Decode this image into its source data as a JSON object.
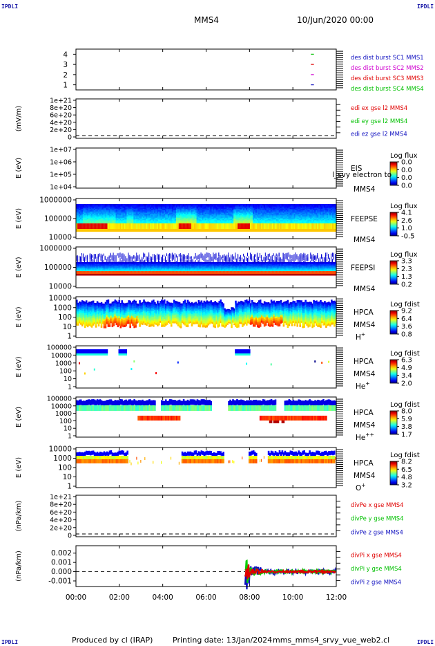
{
  "header": {
    "corner_mark": "IPDLI",
    "spacecraft": "MMS4",
    "datetime": "10/Jun/2020 00:00"
  },
  "footer": {
    "produced_by": "Produced by cl (IRAP)",
    "printing_date": "Printing date: 13/Jan/2024",
    "filename": "mms_mms4_srvy_vue_web2.cl"
  },
  "colors": {
    "mms1": "#1010c0",
    "mms2": "#d000d0",
    "mms3": "#e00000",
    "mms4": "#00c000",
    "x_comp": "#e00000",
    "y_comp": "#00d000",
    "z_comp": "#0000d0"
  },
  "chart_data": [
    {
      "type": "line",
      "panel": "dist-burst",
      "y_ticks": [
        "4",
        "3",
        "2",
        "1"
      ],
      "ylim": [
        0.5,
        4.5
      ],
      "series": [
        {
          "name": "des dist burst SC1 MMS1",
          "color": "#1010c0",
          "y": 1,
          "segments": [
            [
              10.83,
              10.97
            ]
          ]
        },
        {
          "name": "des dist burst SC2 MMS2",
          "color": "#d000d0",
          "y": 2,
          "segments": [
            [
              10.83,
              10.97
            ]
          ]
        },
        {
          "name": "des dist burst SC3 MMS3",
          "color": "#e00000",
          "y": 3,
          "segments": [
            [
              10.83,
              10.97
            ]
          ]
        },
        {
          "name": "des dist burst SC4 MMS4",
          "color": "#00c000",
          "y": 4,
          "segments": [
            [
              10.83,
              10.97
            ]
          ]
        }
      ]
    },
    {
      "type": "line",
      "panel": "edi-efield",
      "ylabel": "(mV/m)",
      "y_ticks": [
        "1e+21",
        "8e+20",
        "6e+20",
        "4e+20",
        "2e+20",
        "0"
      ],
      "legend": [
        {
          "name": "edi ex gse l2 MMS4",
          "color": "#e00000"
        },
        {
          "name": "edi ey gse l2 MMS4",
          "color": "#00c000"
        },
        {
          "name": "edi ez gse l2 MMS4",
          "color": "#1010c0"
        }
      ]
    },
    {
      "type": "heatmap",
      "panel": "eis",
      "ylabel": "E (eV)",
      "y_ticks": [
        "1e+07",
        "1e+06",
        "1e+05",
        "1e+04"
      ],
      "label_lines": [
        "EIS",
        "MMS4"
      ],
      "overlay_text": "l_svy electron to",
      "colorbar": {
        "title": "Log flux",
        "ticks": [
          "0.0",
          "0.0",
          "0.0",
          "0.0"
        ]
      }
    },
    {
      "type": "heatmap",
      "panel": "feeps-e",
      "ylabel": "E (eV)",
      "y_ticks": [
        "1000000",
        "100000",
        "10000"
      ],
      "label_lines": [
        "FEEPSE",
        "MMS4"
      ],
      "colorbar": {
        "title": "Log flux",
        "ticks": [
          "4.1",
          "2.6",
          "1.0",
          "-0.5"
        ]
      }
    },
    {
      "type": "heatmap",
      "panel": "feeps-i",
      "ylabel": "E (eV)",
      "y_ticks": [
        "1000000",
        "100000",
        "10000"
      ],
      "label_lines": [
        "FEEPSI",
        "MMS4"
      ],
      "colorbar": {
        "title": "Log flux",
        "ticks": [
          "3.3",
          "2.3",
          "1.3",
          "0.2"
        ]
      }
    },
    {
      "type": "heatmap",
      "panel": "hpca-h",
      "ylabel": "E (eV)",
      "y_ticks": [
        "10000",
        "1000",
        "100",
        "10",
        "1"
      ],
      "label_lines": [
        "HPCA",
        "MMS4"
      ],
      "species": "H",
      "species_sup": "+",
      "colorbar": {
        "title": "Log fdist",
        "ticks": [
          "9.2",
          "6.4",
          "3.6",
          "0.8"
        ]
      }
    },
    {
      "type": "heatmap",
      "panel": "hpca-he",
      "ylabel": "E (eV)",
      "y_ticks": [
        "100000",
        "10000",
        "1000",
        "100",
        "10",
        "1"
      ],
      "label_lines": [
        "HPCA",
        "MMS4"
      ],
      "species": "He",
      "species_sup": "+",
      "colorbar": {
        "title": "Log fdist",
        "ticks": [
          "6.3",
          "4.9",
          "3.4",
          "2.0"
        ]
      }
    },
    {
      "type": "heatmap",
      "panel": "hpca-he2",
      "ylabel": "E (eV)",
      "y_ticks": [
        "100000",
        "10000",
        "1000",
        "100",
        "10",
        "1"
      ],
      "label_lines": [
        "HPCA",
        "MMS4"
      ],
      "species": "He",
      "species_sup": "++",
      "colorbar": {
        "title": "Log fdist",
        "ticks": [
          "8.0",
          "5.9",
          "3.8",
          "1.7"
        ]
      }
    },
    {
      "type": "heatmap",
      "panel": "hpca-o",
      "ylabel": "E (eV)",
      "y_ticks": [
        "10000",
        "1000",
        "100",
        "10",
        "1"
      ],
      "label_lines": [
        "HPCA",
        "MMS4"
      ],
      "species": "O",
      "species_sup": "+",
      "colorbar": {
        "title": "Log fdist",
        "ticks": [
          "8.2",
          "6.5",
          "4.8",
          "3.2"
        ]
      }
    },
    {
      "type": "line",
      "panel": "divpe",
      "ylabel": "(nPa/km)",
      "y_ticks": [
        "1e+21",
        "8e+20",
        "6e+20",
        "4e+20",
        "2e+20",
        "0"
      ],
      "legend": [
        {
          "name": "divPe x gse MMS4",
          "color": "#e00000"
        },
        {
          "name": "divPe y gse MMS4",
          "color": "#00c000"
        },
        {
          "name": "divPe z gse MMS4",
          "color": "#1010c0"
        }
      ]
    },
    {
      "type": "line",
      "panel": "divpi",
      "ylabel": "(nPa/km)",
      "y_ticks": [
        "0.002",
        "0.001",
        "0.000",
        "-0.001"
      ],
      "ylim": [
        -0.0016,
        0.0028
      ],
      "legend": [
        {
          "name": "divPi x gse MMS4",
          "color": "#e00000"
        },
        {
          "name": "divPi y gse MMS4",
          "color": "#00c000"
        },
        {
          "name": "divPi z gse MMS4",
          "color": "#1010c0"
        }
      ],
      "data_start_hour": 7.8
    }
  ],
  "x_axis": {
    "ticks": [
      "00:00",
      "02:00",
      "04:00",
      "06:00",
      "08:00",
      "10:00",
      "12:00"
    ],
    "xlim_hours": [
      0,
      12
    ]
  }
}
